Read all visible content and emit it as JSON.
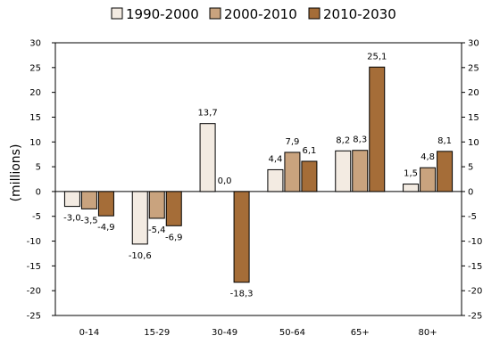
{
  "chart_data": {
    "type": "bar",
    "title": "",
    "xlabel": "",
    "ylabel": "(millions)",
    "ylim": [
      -25,
      30
    ],
    "yticks": [
      30,
      25,
      20,
      15,
      10,
      5,
      0,
      -5,
      -10,
      -15,
      -20,
      -25
    ],
    "grid": false,
    "legend_position": "top",
    "categories": [
      "0-14",
      "15-29",
      "30-49",
      "50-64",
      "65+",
      "80+"
    ],
    "series": [
      {
        "name": "1990-2000",
        "color": "#f3ebe2",
        "values": [
          -3.0,
          -10.6,
          13.7,
          4.4,
          8.2,
          1.5
        ],
        "labels": [
          "-3,0",
          "-10,6",
          "13,7",
          "4,4",
          "8,2",
          "1,5"
        ]
      },
      {
        "name": "2000-2010",
        "color": "#c9a37e",
        "values": [
          -3.5,
          -5.4,
          0.0,
          7.9,
          8.3,
          4.8
        ],
        "labels": [
          "-3,5",
          "-5,4",
          "0,0",
          "7,9",
          "8,3",
          "4,8"
        ]
      },
      {
        "name": "2010-2030",
        "color": "#a56d38",
        "values": [
          -4.9,
          -6.9,
          -18.3,
          6.1,
          25.1,
          8.1
        ],
        "labels": [
          "-4,9",
          "-6,9",
          "-18,3",
          "6,1",
          "25,1",
          "8,1"
        ]
      }
    ]
  }
}
